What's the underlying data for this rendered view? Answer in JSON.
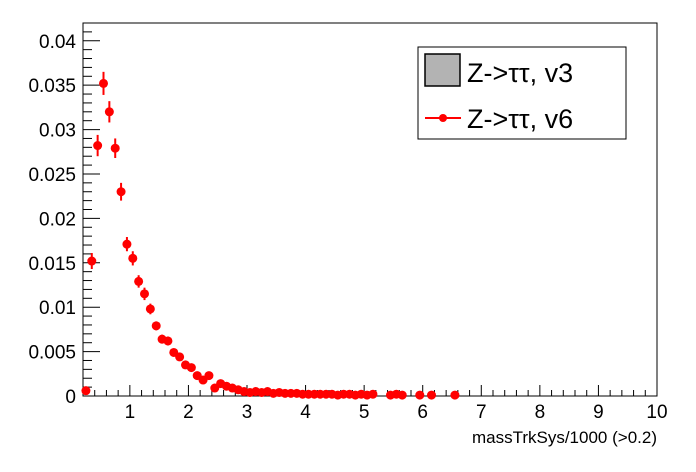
{
  "chart_data": {
    "type": "scatter",
    "title": "",
    "xlabel": "massTrkSys/1000 (>0.2)",
    "ylabel": "",
    "xlim": [
      0.2,
      10
    ],
    "ylim": [
      0,
      0.042
    ],
    "x_ticks": [
      "1",
      "2",
      "3",
      "4",
      "5",
      "6",
      "7",
      "8",
      "9",
      "10"
    ],
    "y_ticks": [
      "0",
      "0.005",
      "0.01",
      "0.015",
      "0.02",
      "0.025",
      "0.03",
      "0.035",
      "0.04"
    ],
    "legend_position": "top-right",
    "legend": [
      {
        "label": "Z->ττ, v3",
        "style": "filled-box",
        "color": "#b3b3b3"
      },
      {
        "label": "Z->ττ, v6",
        "style": "marker-line",
        "color": "#ff0000"
      }
    ],
    "series": [
      {
        "name": "Z->ττ, v6",
        "color": "#ff0000",
        "x": [
          0.25,
          0.35,
          0.45,
          0.55,
          0.65,
          0.75,
          0.85,
          0.95,
          1.05,
          1.15,
          1.25,
          1.35,
          1.45,
          1.55,
          1.65,
          1.75,
          1.85,
          1.95,
          2.05,
          2.15,
          2.25,
          2.35,
          2.45,
          2.55,
          2.65,
          2.75,
          2.85,
          2.95,
          3.05,
          3.15,
          3.25,
          3.35,
          3.45,
          3.55,
          3.65,
          3.75,
          3.85,
          3.95,
          4.05,
          4.15,
          4.25,
          4.35,
          4.45,
          4.55,
          4.65,
          4.75,
          4.85,
          4.95,
          5.05,
          5.15,
          5.45,
          5.55,
          5.65,
          5.95,
          6.15,
          6.55
        ],
        "y": [
          0.0006,
          0.0152,
          0.0282,
          0.0352,
          0.032,
          0.0279,
          0.023,
          0.0171,
          0.0155,
          0.0129,
          0.0115,
          0.0098,
          0.0079,
          0.0064,
          0.0062,
          0.0049,
          0.0044,
          0.0035,
          0.0032,
          0.0023,
          0.0018,
          0.0023,
          0.0009,
          0.0014,
          0.0011,
          0.0009,
          0.0007,
          0.0005,
          0.0004,
          0.0005,
          0.0004,
          0.0005,
          0.0003,
          0.0004,
          0.0003,
          0.0003,
          0.0003,
          0.0002,
          0.0002,
          0.0002,
          0.0002,
          0.0002,
          0.0002,
          0.0001,
          0.0002,
          0.0002,
          0.0001,
          0.0002,
          0.0001,
          0.0002,
          0.0001,
          0.0002,
          0.0001,
          0.0001,
          0.0001,
          0.0001
        ],
        "yerr": [
          0.0002,
          0.0009,
          0.0012,
          0.0013,
          0.0012,
          0.0011,
          0.001,
          0.0008,
          0.0008,
          0.0007,
          0.0007,
          0.0006,
          0.0005,
          0.0005,
          0.0005,
          0.0004,
          0.0004,
          0.0004,
          0.0003,
          0.0003,
          0.0003,
          0.0003,
          0.0002,
          0.0002,
          0.0002,
          0.0002,
          0.0002,
          0.0002,
          0.0001,
          0.0001,
          0.0001,
          0.0001,
          0.0001,
          0.0001,
          0.0001,
          0.0001,
          0.0001,
          0.0001,
          0.0001,
          0.0001,
          0.0001,
          0.0001,
          0.0001,
          0.0001,
          0.0001,
          0.0001,
          0.0001,
          0.0001,
          0.0001,
          0.0001,
          0.0001,
          0.0001,
          0.0001,
          0.0001,
          0.0001,
          0.0001
        ]
      }
    ]
  }
}
